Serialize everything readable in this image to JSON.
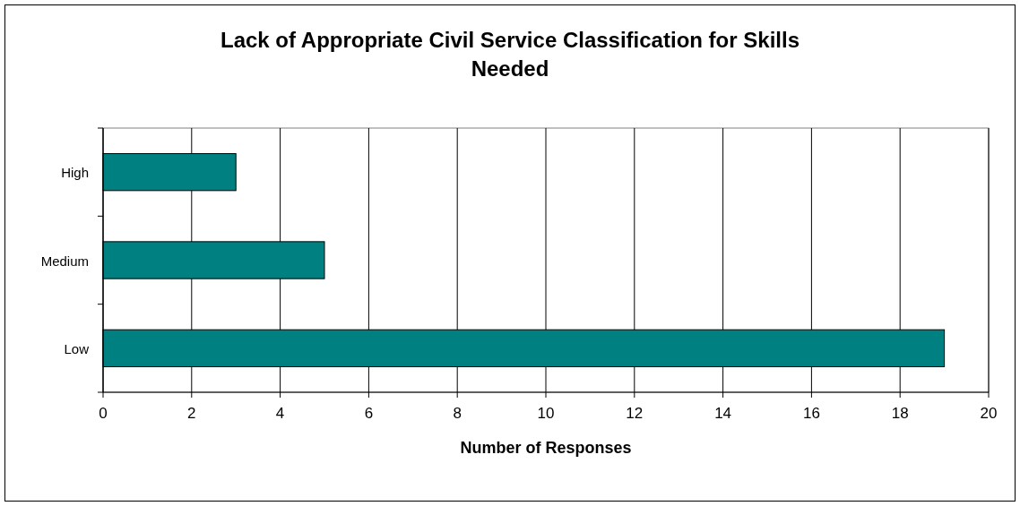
{
  "chart_data": {
    "type": "bar",
    "orientation": "horizontal",
    "title": "Lack of Appropriate Civil Service Classification for Skills Needed",
    "xlabel": "Number of Responses",
    "categories": [
      "High",
      "Medium",
      "Low"
    ],
    "values": [
      3,
      5,
      19
    ],
    "color": "#008080",
    "xlim": [
      0,
      20
    ],
    "xticks": [
      0,
      2,
      4,
      6,
      8,
      10,
      12,
      14,
      16,
      18,
      20
    ],
    "grid": "x"
  }
}
